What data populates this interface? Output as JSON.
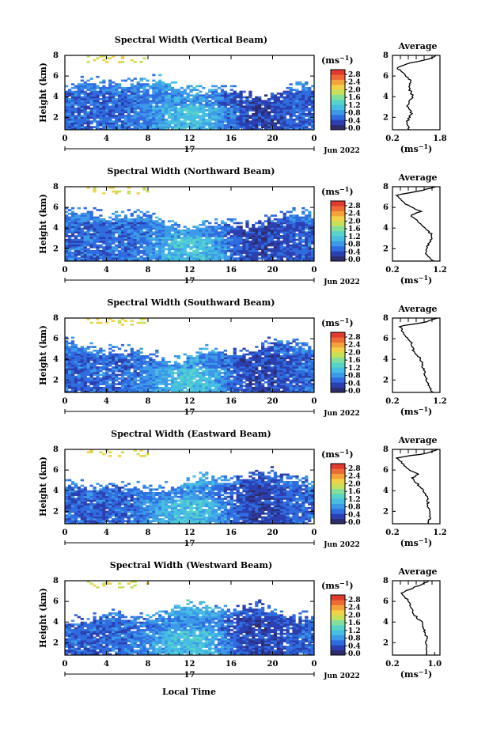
{
  "colors": {
    "colorbar": [
      "#2c2c6e",
      "#2b3fb0",
      "#2f6ce0",
      "#3c9ae8",
      "#46bde2",
      "#58d3c8",
      "#84df9a",
      "#c6e05a",
      "#f1d247",
      "#f6a23b",
      "#ee6b36",
      "#e13a2e"
    ],
    "gaps": "#ffffff"
  },
  "month_label": "Jun 2022",
  "date_label": "17",
  "x_axis_label": "Local Time",
  "colorbar_unit_prefix": "(ms",
  "colorbar_unit_exp": "−1",
  "colorbar_unit_suffix": ")",
  "chart_data": [
    {
      "type": "heatmap",
      "title": "Spectral Width (Vertical Beam)",
      "ylabel": "Height (km)",
      "xlabel": "",
      "xlim": [
        0,
        24
      ],
      "xticks": [
        "0",
        "4",
        "8",
        "12",
        "16",
        "20",
        "0"
      ],
      "ylim": [
        0.8,
        8
      ],
      "yticks": [
        "2",
        "4",
        "6",
        "8"
      ],
      "colorbar_ticks": [
        "2.8",
        "2.4",
        "2.0",
        "1.6",
        "1.2",
        "0.8",
        "0.4",
        "0.0"
      ],
      "colorbar_range": [
        0.0,
        2.8
      ],
      "avg_title": "Average",
      "avg_xticks": [
        "0.2",
        "1.8"
      ],
      "avg_xlim": [
        0.2,
        1.8
      ],
      "avg_xlabel_prefix": "(ms",
      "avg_xlabel_exp": "−1",
      "avg_xlabel_suffix": ")",
      "avg_profile": {
        "height": [
          0.8,
          1.6,
          2.4,
          3.2,
          4.0,
          4.8,
          5.6,
          6.4,
          6.8,
          7.2,
          7.6,
          8.0
        ],
        "value": [
          0.75,
          0.7,
          0.85,
          0.7,
          0.9,
          0.75,
          0.8,
          0.55,
          0.35,
          0.7,
          1.4,
          1.7
        ]
      }
    },
    {
      "type": "heatmap",
      "title": "Spectral Width (Northward Beam)",
      "ylabel": "Height (km)",
      "xlabel": "",
      "xlim": [
        0,
        24
      ],
      "xticks": [
        "0",
        "4",
        "8",
        "12",
        "16",
        "20",
        "0"
      ],
      "ylim": [
        0.8,
        8
      ],
      "yticks": [
        "2",
        "4",
        "6",
        "8"
      ],
      "colorbar_ticks": [
        "2.8",
        "2.4",
        "2.0",
        "1.6",
        "1.2",
        "0.8",
        "0.4",
        "0.0"
      ],
      "colorbar_range": [
        0.0,
        2.8
      ],
      "avg_title": "Average",
      "avg_xticks": [
        "0.2",
        "1.2"
      ],
      "avg_xlim": [
        0.2,
        1.2
      ],
      "avg_xlabel_prefix": "(ms",
      "avg_xlabel_exp": "−1",
      "avg_xlabel_suffix": ")",
      "avg_profile": {
        "height": [
          0.8,
          1.6,
          2.4,
          3.2,
          4.0,
          4.8,
          5.2,
          5.6,
          6.4,
          7.2,
          7.6,
          8.0
        ],
        "value": [
          1.05,
          0.9,
          0.95,
          1.05,
          0.9,
          0.7,
          0.55,
          0.8,
          0.45,
          0.3,
          0.8,
          1.1
        ]
      }
    },
    {
      "type": "heatmap",
      "title": "Spectral Width (Southward Beam)",
      "ylabel": "Height (km)",
      "xlabel": "",
      "xlim": [
        0,
        24
      ],
      "xticks": [
        "0",
        "4",
        "8",
        "12",
        "16",
        "20",
        "0"
      ],
      "ylim": [
        0.8,
        8
      ],
      "yticks": [
        "2",
        "4",
        "6",
        "8"
      ],
      "colorbar_ticks": [
        "2.8",
        "2.4",
        "2.0",
        "1.6",
        "1.2",
        "0.8",
        "0.4",
        "0.0"
      ],
      "colorbar_range": [
        0.0,
        2.8
      ],
      "avg_title": "Average",
      "avg_xticks": [
        "0.2",
        "1.2"
      ],
      "avg_xlim": [
        0.2,
        1.2
      ],
      "avg_xlabel_prefix": "(ms",
      "avg_xlabel_exp": "−1",
      "avg_xlabel_suffix": ")",
      "avg_profile": {
        "height": [
          0.8,
          1.6,
          2.4,
          3.2,
          4.0,
          4.8,
          5.6,
          6.4,
          7.2,
          7.6,
          8.0
        ],
        "value": [
          1.05,
          0.95,
          0.9,
          0.85,
          0.8,
          0.65,
          0.6,
          0.45,
          0.35,
          0.9,
          1.15
        ]
      }
    },
    {
      "type": "heatmap",
      "title": "Spectral Width (Eastward Beam)",
      "ylabel": "Height (km)",
      "xlabel": "",
      "xlim": [
        0,
        24
      ],
      "xticks": [
        "0",
        "4",
        "8",
        "12",
        "16",
        "20",
        "0"
      ],
      "ylim": [
        0.8,
        8
      ],
      "yticks": [
        "2",
        "4",
        "6",
        "8"
      ],
      "colorbar_ticks": [
        "2.8",
        "2.4",
        "2.0",
        "1.6",
        "1.2",
        "0.8",
        "0.4",
        "0.0"
      ],
      "colorbar_range": [
        0.0,
        2.8
      ],
      "avg_title": "Average",
      "avg_xticks": [
        "0.2",
        "1.2"
      ],
      "avg_xlim": [
        0.2,
        1.2
      ],
      "avg_xlabel_prefix": "(ms",
      "avg_xlabel_exp": "−1",
      "avg_xlabel_suffix": ")",
      "avg_profile": {
        "height": [
          0.8,
          1.6,
          2.4,
          3.2,
          4.0,
          4.8,
          5.2,
          5.6,
          6.0,
          6.4,
          7.2,
          7.6,
          8.0
        ],
        "value": [
          0.95,
          1.0,
          0.95,
          0.95,
          0.85,
          0.7,
          0.6,
          0.75,
          0.55,
          0.45,
          0.3,
          0.9,
          1.15
        ]
      }
    },
    {
      "type": "heatmap",
      "title": "Spectral Width (Westward Beam)",
      "ylabel": "Height (km)",
      "xlabel": "Local Time",
      "xlim": [
        0,
        24
      ],
      "xticks": [
        "0",
        "4",
        "8",
        "12",
        "16",
        "20",
        "0"
      ],
      "ylim": [
        0.8,
        8
      ],
      "yticks": [
        "2",
        "4",
        "6",
        "8"
      ],
      "colorbar_ticks": [
        "2.8",
        "2.4",
        "2.0",
        "1.6",
        "1.2",
        "0.8",
        "0.4",
        "0.0"
      ],
      "colorbar_range": [
        0.0,
        2.8
      ],
      "avg_title": "Average",
      "avg_xticks": [
        "0.2",
        "1.0"
      ],
      "avg_xlim": [
        0.2,
        1.1
      ],
      "avg_xlabel_prefix": "(ms",
      "avg_xlabel_exp": "−1",
      "avg_xlabel_suffix": ")",
      "avg_profile": {
        "height": [
          0.8,
          1.6,
          2.4,
          3.2,
          4.0,
          4.8,
          5.6,
          6.4,
          6.8,
          7.2,
          8.0
        ],
        "value": [
          0.85,
          0.85,
          0.85,
          0.8,
          0.75,
          0.6,
          0.55,
          0.45,
          0.35,
          0.55,
          0.9
        ]
      }
    }
  ]
}
